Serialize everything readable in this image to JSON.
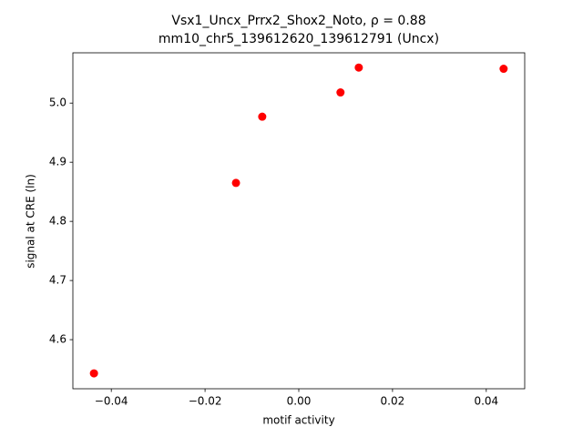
{
  "chart_data": {
    "type": "scatter",
    "title": "Vsx1_Uncx_Prrx2_Shox2_Noto, ρ = 0.88",
    "subtitle": "mm10_chr5_139612620_139612791 (Uncx)",
    "x_label": "motif activity",
    "y_label": "signal at CRE (ln)",
    "color": "#ff0000",
    "x": [
      -0.0437,
      -0.0134,
      -0.0078,
      0.0089,
      0.0128,
      0.0437
    ],
    "values": [
      4.543,
      4.865,
      4.977,
      5.018,
      5.06,
      5.058
    ],
    "xlim": [
      -0.0482,
      0.0482
    ],
    "ylim": [
      4.517,
      5.085
    ],
    "xticks": [
      {
        "value": -0.04,
        "label": "−0.04"
      },
      {
        "value": -0.02,
        "label": "−0.02"
      },
      {
        "value": 0,
        "label": "0.00"
      },
      {
        "value": 0.02,
        "label": "0.02"
      },
      {
        "value": 0.04,
        "label": "0.04"
      }
    ],
    "yticks": [
      4.6,
      4.7,
      4.8,
      4.9,
      {
        "value": 5,
        "label": "5.0"
      }
    ]
  }
}
